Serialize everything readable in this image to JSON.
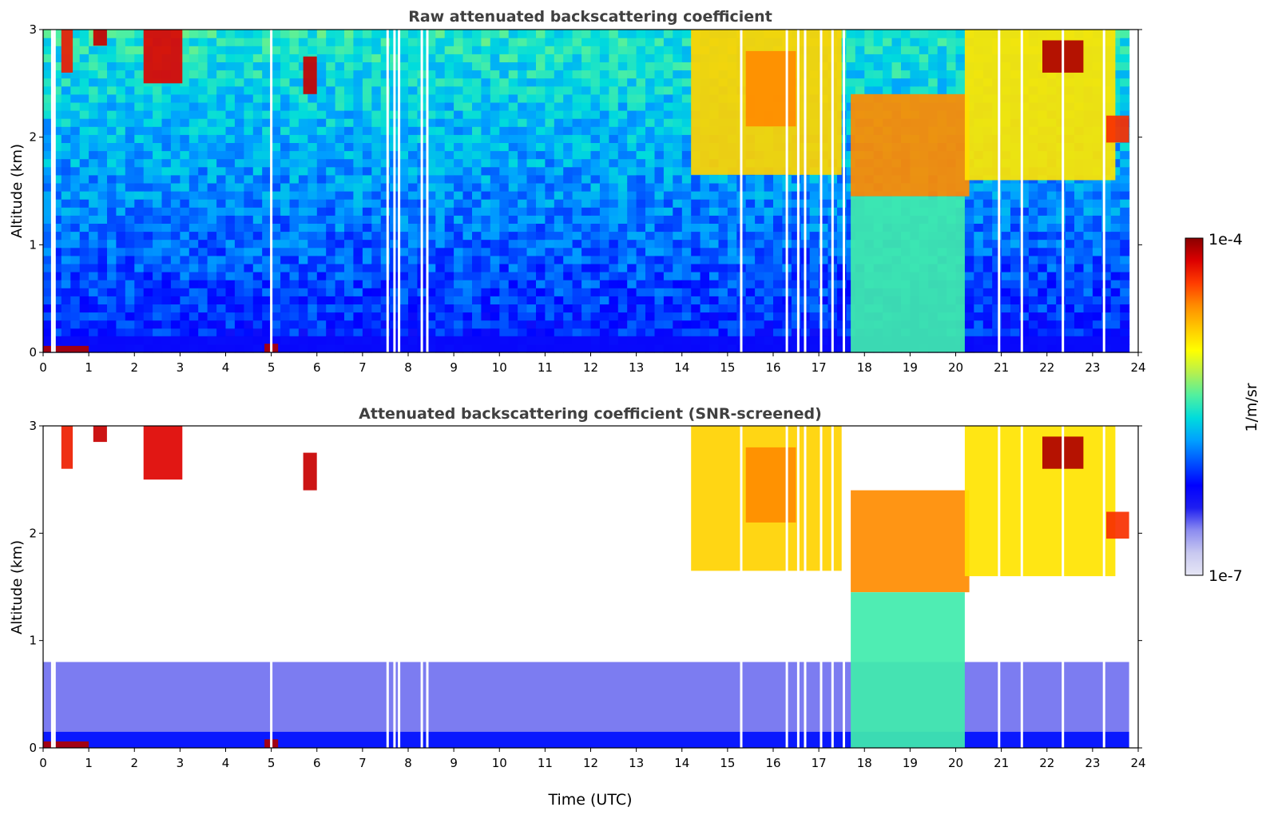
{
  "chart_data": [
    {
      "type": "heatmap",
      "title": "Raw attenuated backscattering coefficient",
      "xlabel": "",
      "ylabel": "Altitude (km)",
      "xlim": [
        0,
        24
      ],
      "ylim": [
        0,
        3
      ],
      "xticks": [
        "0",
        "1",
        "2",
        "3",
        "4",
        "5",
        "6",
        "7",
        "8",
        "9",
        "10",
        "11",
        "12",
        "13",
        "14",
        "15",
        "16",
        "17",
        "18",
        "19",
        "20",
        "21",
        "22",
        "23",
        "24"
      ],
      "yticks": [
        "0",
        "1",
        "2",
        "3"
      ],
      "screened": false,
      "features": [
        {
          "name": "surface-layer",
          "t0": 0,
          "t1": 23.8,
          "z0": 0,
          "z1": 0.15,
          "level": 0.25
        },
        {
          "name": "surface-aerosol",
          "t0": 0,
          "t1": 1.0,
          "z0": 0,
          "z1": 0.06,
          "level": 0.97
        },
        {
          "name": "surface-aerosol",
          "t0": 4.85,
          "t1": 5.15,
          "z0": 0,
          "z1": 0.08,
          "level": 0.97
        },
        {
          "name": "cloud",
          "t0": 0.4,
          "t1": 0.65,
          "z0": 2.6,
          "z1": 3.0,
          "level": 0.9
        },
        {
          "name": "cloud",
          "t0": 1.1,
          "t1": 1.4,
          "z0": 2.85,
          "z1": 3.0,
          "level": 0.95
        },
        {
          "name": "cloud",
          "t0": 2.2,
          "t1": 3.05,
          "z0": 2.5,
          "z1": 3.0,
          "level": 0.93
        },
        {
          "name": "cloud",
          "t0": 5.7,
          "t1": 6.0,
          "z0": 2.4,
          "z1": 2.75,
          "level": 0.95
        },
        {
          "name": "cloud",
          "t0": 14.2,
          "t1": 17.5,
          "z0": 1.65,
          "z1": 3.0,
          "level": 0.72
        },
        {
          "name": "cloud",
          "t0": 15.4,
          "t1": 16.5,
          "z0": 2.1,
          "z1": 2.8,
          "level": 0.8
        },
        {
          "name": "cloud",
          "t0": 17.7,
          "t1": 20.3,
          "z0": 1.45,
          "z1": 2.4,
          "level": 0.8
        },
        {
          "name": "cloud",
          "t0": 17.7,
          "t1": 20.2,
          "z0": 0.0,
          "z1": 1.45,
          "level": 0.52
        },
        {
          "name": "cloud",
          "t0": 20.2,
          "t1": 23.5,
          "z0": 1.6,
          "z1": 3.0,
          "level": 0.7
        },
        {
          "name": "cloud",
          "t0": 21.9,
          "t1": 22.8,
          "z0": 2.6,
          "z1": 2.9,
          "level": 0.97
        },
        {
          "name": "cloud",
          "t0": 23.3,
          "t1": 23.8,
          "z0": 1.95,
          "z1": 2.2,
          "level": 0.88
        }
      ],
      "gaps": [
        0.2,
        0.25,
        5.0,
        7.55,
        7.7,
        7.8,
        8.3,
        8.42,
        15.3,
        16.3,
        16.55,
        16.7,
        17.05,
        17.3,
        17.55,
        20.95,
        21.45,
        22.35,
        23.25
      ]
    },
    {
      "type": "heatmap",
      "title": "Attenuated backscattering coefficient (SNR-screened)",
      "xlabel": "Time (UTC)",
      "ylabel": "Altitude (km)",
      "xlim": [
        0,
        24
      ],
      "ylim": [
        0,
        3
      ],
      "xticks": [
        "0",
        "1",
        "2",
        "3",
        "4",
        "5",
        "6",
        "7",
        "8",
        "9",
        "10",
        "11",
        "12",
        "13",
        "14",
        "15",
        "16",
        "17",
        "18",
        "19",
        "20",
        "21",
        "22",
        "23",
        "24"
      ],
      "yticks": [
        "0",
        "1",
        "2",
        "3"
      ],
      "screened": true,
      "features": [
        {
          "name": "boundary-layer",
          "t0": 0,
          "t1": 23.8,
          "z0": 0,
          "z1": 0.8,
          "level": 0.15
        },
        {
          "name": "surface-layer",
          "t0": 0,
          "t1": 23.8,
          "z0": 0,
          "z1": 0.15,
          "level": 0.28
        },
        {
          "name": "surface-aerosol",
          "t0": 0,
          "t1": 1.0,
          "z0": 0,
          "z1": 0.06,
          "level": 0.97
        },
        {
          "name": "surface-aerosol",
          "t0": 4.85,
          "t1": 5.15,
          "z0": 0,
          "z1": 0.08,
          "level": 0.97
        },
        {
          "name": "cloud",
          "t0": 0.4,
          "t1": 0.65,
          "z0": 2.6,
          "z1": 3.0,
          "level": 0.9
        },
        {
          "name": "cloud",
          "t0": 1.1,
          "t1": 1.4,
          "z0": 2.85,
          "z1": 3.0,
          "level": 0.95
        },
        {
          "name": "cloud",
          "t0": 2.2,
          "t1": 3.05,
          "z0": 2.5,
          "z1": 3.0,
          "level": 0.93
        },
        {
          "name": "cloud",
          "t0": 5.7,
          "t1": 6.0,
          "z0": 2.4,
          "z1": 2.75,
          "level": 0.95
        },
        {
          "name": "cloud",
          "t0": 14.2,
          "t1": 17.5,
          "z0": 1.65,
          "z1": 3.0,
          "level": 0.72
        },
        {
          "name": "cloud",
          "t0": 15.4,
          "t1": 16.5,
          "z0": 2.1,
          "z1": 2.8,
          "level": 0.8
        },
        {
          "name": "cloud",
          "t0": 17.7,
          "t1": 20.3,
          "z0": 1.45,
          "z1": 2.4,
          "level": 0.8
        },
        {
          "name": "cloud",
          "t0": 17.7,
          "t1": 20.2,
          "z0": 0.0,
          "z1": 1.45,
          "level": 0.52
        },
        {
          "name": "cloud",
          "t0": 20.2,
          "t1": 23.5,
          "z0": 1.6,
          "z1": 3.0,
          "level": 0.7
        },
        {
          "name": "cloud",
          "t0": 21.9,
          "t1": 22.8,
          "z0": 2.6,
          "z1": 2.9,
          "level": 0.97
        },
        {
          "name": "cloud",
          "t0": 23.3,
          "t1": 23.8,
          "z0": 1.95,
          "z1": 2.2,
          "level": 0.88
        }
      ],
      "gaps": [
        0.2,
        0.25,
        5.0,
        7.55,
        7.7,
        7.8,
        8.3,
        8.42,
        15.3,
        16.3,
        16.55,
        16.7,
        17.05,
        17.3,
        17.55,
        20.95,
        21.45,
        22.35,
        23.25
      ]
    }
  ],
  "colorbar": {
    "label": "1/m/sr",
    "max_label": "1e-4",
    "min_label": "1e-7",
    "scale": "log",
    "range": [
      1e-07,
      0.0001
    ],
    "colormap": [
      "#e6e6f5",
      "#c8c8f0",
      "#8c8cf0",
      "#1e1ef0",
      "#0000ff",
      "#0050ff",
      "#00a0ff",
      "#00dcdc",
      "#50f0a0",
      "#b4f050",
      "#ffff00",
      "#ffc800",
      "#ff8c00",
      "#ff3c00",
      "#dc0000",
      "#8b0000"
    ]
  }
}
